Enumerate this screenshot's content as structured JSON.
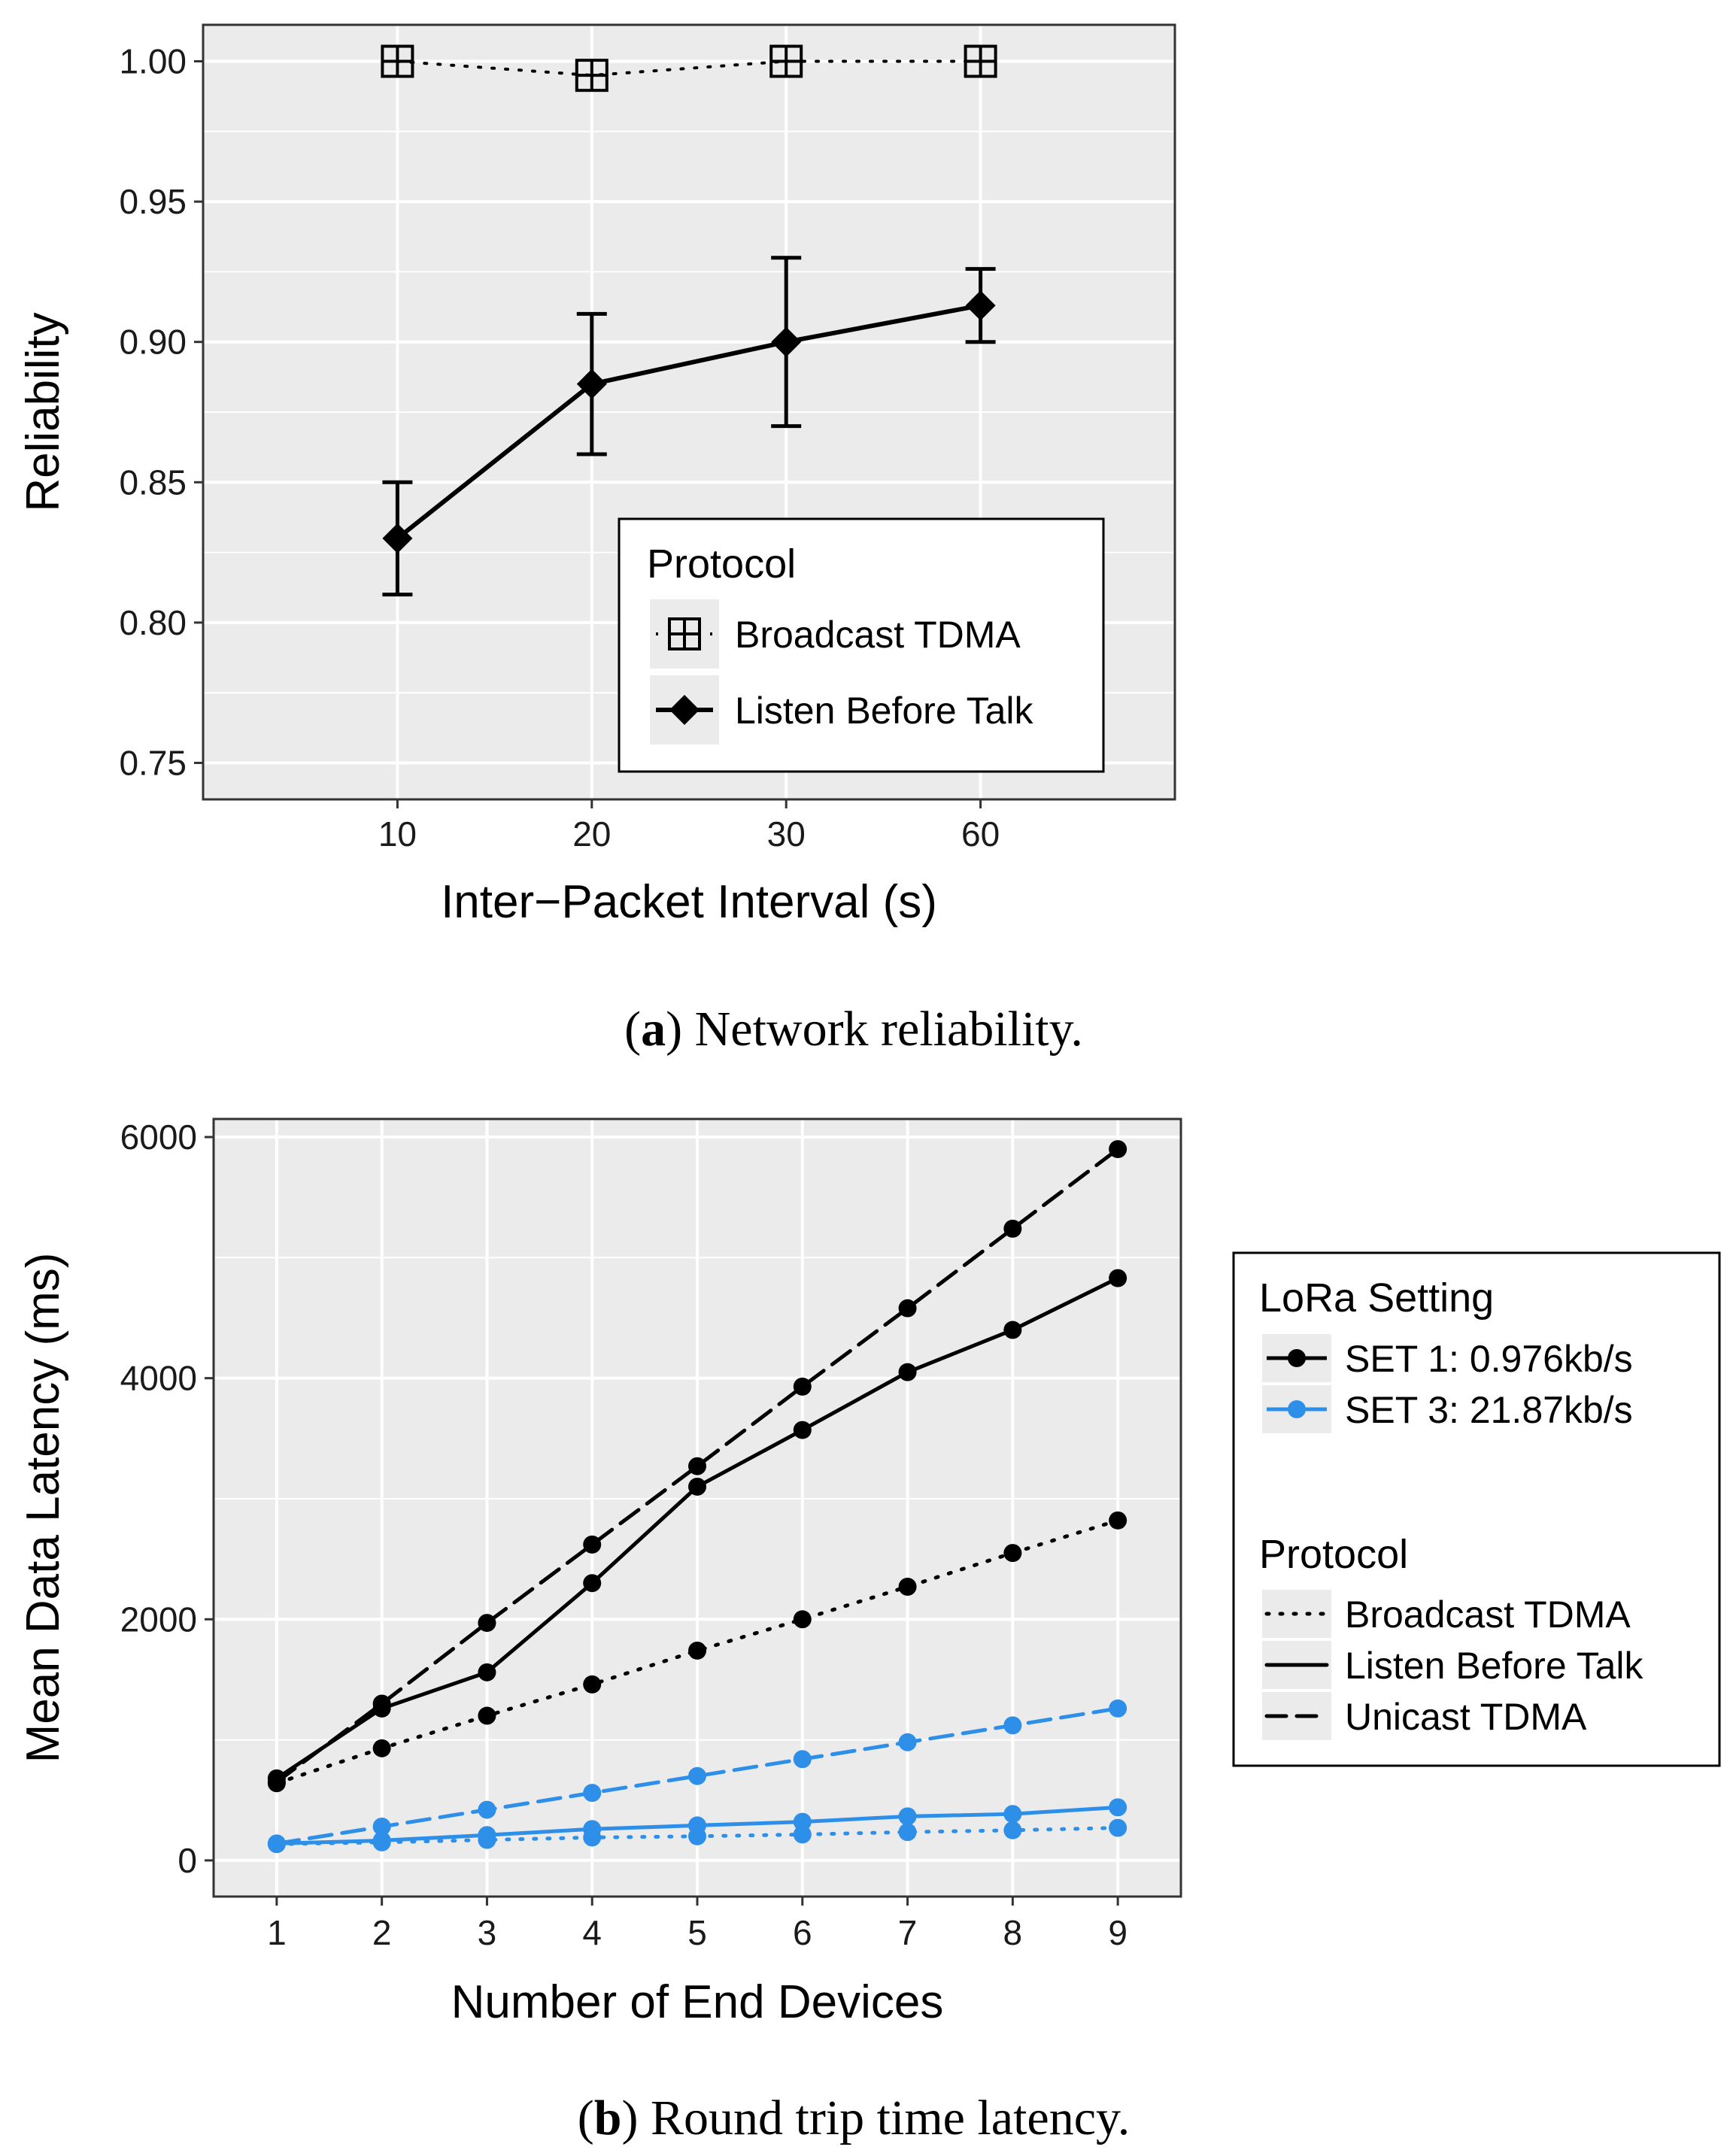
{
  "colors": {
    "panel_background": "#ebebeb",
    "grid": "#ffffff",
    "set1": "#000000",
    "set3": "#2e8fe8"
  },
  "chart_data": [
    {
      "type": "line",
      "x_type": "categorical",
      "categories": [
        "10",
        "20",
        "30",
        "60"
      ],
      "xlabel": "Inter−Packet Interval (s)",
      "ylabel": "Reliability",
      "ylim": [
        0.737,
        1.013
      ],
      "yticks": [
        0.75,
        0.8,
        0.85,
        0.9,
        0.95,
        1.0
      ],
      "ytick_labels": [
        "0.75",
        "0.80",
        "0.85",
        "0.90",
        "0.95",
        "1.00"
      ],
      "grid": true,
      "legend": {
        "title": "Protocol",
        "placement": "bottom-right inside",
        "entries": [
          "Broadcast TDMA",
          "Listen Before Talk"
        ]
      },
      "series": [
        {
          "name": "Broadcast TDMA",
          "line": "dotted",
          "marker": "boxed-plus",
          "color": "#000000",
          "values": [
            1.0,
            0.995,
            1.0,
            1.0
          ]
        },
        {
          "name": "Listen Before Talk",
          "line": "solid",
          "marker": "diamond",
          "color": "#000000",
          "values": [
            0.83,
            0.885,
            0.9,
            0.913
          ],
          "error_low": [
            0.81,
            0.86,
            0.87,
            0.9
          ],
          "error_high": [
            0.85,
            0.91,
            0.93,
            0.926
          ]
        }
      ],
      "caption": {
        "letter": "a",
        "text": " Network reliability."
      }
    },
    {
      "type": "line",
      "x": [
        1,
        2,
        3,
        4,
        5,
        6,
        7,
        8,
        9
      ],
      "xlim": [
        0.4,
        9.6
      ],
      "xticks": [
        "1",
        "2",
        "3",
        "4",
        "5",
        "6",
        "7",
        "8",
        "9"
      ],
      "xlabel": "Number of End Devices",
      "ylabel": "Mean Data Latency (ms)",
      "ylim": [
        -300,
        6150
      ],
      "yticks": [
        0,
        2000,
        4000,
        6000
      ],
      "ytick_labels": [
        "0",
        "2000",
        "4000",
        "6000"
      ],
      "grid": true,
      "legend": {
        "placement": "right outside",
        "groups": [
          {
            "title": "LoRa Setting",
            "entries": [
              {
                "label": "SET 1: 0.976kb/s",
                "color": "#000000"
              },
              {
                "label": "SET 3: 21.87kb/s",
                "color": "#2e8fe8"
              }
            ]
          },
          {
            "title": "Protocol",
            "entries": [
              {
                "label": "Broadcast TDMA",
                "line": "dotted"
              },
              {
                "label": "Listen Before Talk",
                "line": "solid"
              },
              {
                "label": "Unicast TDMA",
                "line": "dashed"
              }
            ]
          }
        ]
      },
      "series": [
        {
          "setting": "SET 1: 0.976kb/s",
          "protocol": "Unicast TDMA",
          "line": "dashed",
          "color": "#000000",
          "values": [
            650,
            1300,
            1970,
            2620,
            3270,
            3930,
            4580,
            5240,
            5900
          ]
        },
        {
          "setting": "SET 1: 0.976kb/s",
          "protocol": "Listen Before Talk",
          "line": "solid",
          "color": "#000000",
          "values": [
            680,
            1260,
            1560,
            2300,
            3100,
            3570,
            4050,
            4400,
            4830
          ]
        },
        {
          "setting": "SET 1: 0.976kb/s",
          "protocol": "Broadcast TDMA",
          "line": "dotted",
          "color": "#000000",
          "values": [
            640,
            930,
            1200,
            1460,
            1740,
            2000,
            2270,
            2550,
            2820
          ]
        },
        {
          "setting": "SET 3: 21.87kb/s",
          "protocol": "Unicast TDMA",
          "line": "dashed",
          "color": "#2e8fe8",
          "values": [
            140,
            280,
            420,
            560,
            700,
            840,
            980,
            1120,
            1260
          ]
        },
        {
          "setting": "SET 3: 21.87kb/s",
          "protocol": "Listen Before Talk",
          "line": "solid",
          "color": "#2e8fe8",
          "values": [
            140,
            165,
            210,
            260,
            290,
            320,
            365,
            385,
            440
          ]
        },
        {
          "setting": "SET 3: 21.87kb/s",
          "protocol": "Broadcast TDMA",
          "line": "dotted",
          "color": "#2e8fe8",
          "values": [
            135,
            150,
            170,
            190,
            200,
            215,
            235,
            250,
            270
          ]
        }
      ],
      "caption": {
        "letter": "b",
        "text": " Round trip time latency."
      }
    }
  ]
}
